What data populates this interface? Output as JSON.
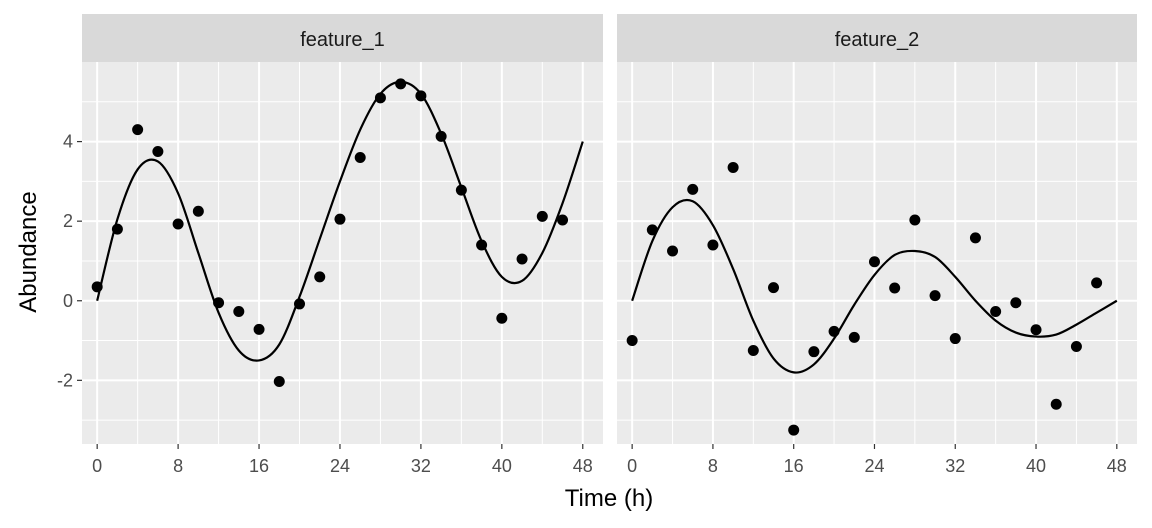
{
  "chart_data": {
    "type": "scatter",
    "xlabel": "Time (h)",
    "ylabel": "Abundance",
    "xlim": [
      -1.5,
      50.0
    ],
    "ylim": [
      -3.6,
      6.0
    ],
    "x_ticks": [
      0,
      8,
      16,
      24,
      32,
      40,
      48
    ],
    "y_ticks": [
      -2,
      0,
      2,
      4
    ],
    "x_tick_labels": [
      "0",
      "8",
      "16",
      "24",
      "32",
      "40",
      "48"
    ],
    "y_tick_labels": [
      "-2",
      "0",
      "2",
      "4"
    ],
    "grid": true,
    "legend": "none",
    "colors": {
      "panel_bg": "#ebebeb",
      "strip_bg": "#d9d9d9",
      "grid": "#ffffff",
      "points": "#000000",
      "line": "#000000"
    },
    "panels": [
      {
        "label": "feature_1",
        "points": {
          "x": [
            0,
            2,
            4,
            6,
            8,
            10,
            12,
            14,
            16,
            18,
            20,
            22,
            24,
            26,
            28,
            30,
            32,
            34,
            36,
            38,
            40,
            42,
            44,
            46
          ],
          "y": [
            0.35,
            1.8,
            4.3,
            3.75,
            1.93,
            2.25,
            -0.05,
            -0.27,
            -0.72,
            -2.03,
            -0.08,
            0.6,
            2.05,
            3.6,
            5.1,
            5.45,
            5.15,
            4.13,
            2.78,
            1.4,
            -0.44,
            1.05,
            2.12,
            2.03
          ]
        },
        "fit": {
          "x": [
            0,
            2,
            4,
            6,
            8,
            10,
            12,
            14,
            16,
            18,
            20,
            22,
            24,
            26,
            28,
            30,
            32,
            34,
            36,
            38,
            40,
            42,
            44,
            46,
            48
          ],
          "y": [
            0.0,
            2.05,
            3.3,
            3.5,
            2.7,
            1.2,
            -0.3,
            -1.25,
            -1.5,
            -1.1,
            0.1,
            1.55,
            3.0,
            4.3,
            5.2,
            5.5,
            5.2,
            4.2,
            2.85,
            1.5,
            0.6,
            0.5,
            1.2,
            2.45,
            4.0
          ]
        }
      },
      {
        "label": "feature_2",
        "points": {
          "x": [
            0,
            2,
            4,
            6,
            8,
            10,
            12,
            14,
            16,
            18,
            20,
            22,
            24,
            26,
            28,
            30,
            32,
            34,
            36,
            38,
            40,
            42,
            44,
            46
          ],
          "y": [
            -1.0,
            1.78,
            1.25,
            2.8,
            1.4,
            3.35,
            -1.25,
            0.33,
            -3.25,
            -1.28,
            -0.77,
            -0.92,
            0.98,
            0.32,
            2.03,
            0.13,
            -0.95,
            1.58,
            -0.27,
            -0.05,
            -0.73,
            -2.6,
            -1.15,
            0.45
          ]
        },
        "fit": {
          "x": [
            0,
            2,
            4,
            6,
            8,
            10,
            12,
            14,
            16,
            18,
            20,
            22,
            24,
            26,
            28,
            30,
            32,
            34,
            36,
            38,
            40,
            42,
            44,
            46,
            48
          ],
          "y": [
            0.0,
            1.5,
            2.35,
            2.5,
            1.9,
            0.8,
            -0.5,
            -1.45,
            -1.8,
            -1.6,
            -0.95,
            -0.1,
            0.65,
            1.15,
            1.25,
            1.1,
            0.6,
            0.0,
            -0.5,
            -0.8,
            -0.9,
            -0.85,
            -0.6,
            -0.3,
            0.0
          ]
        }
      }
    ]
  }
}
